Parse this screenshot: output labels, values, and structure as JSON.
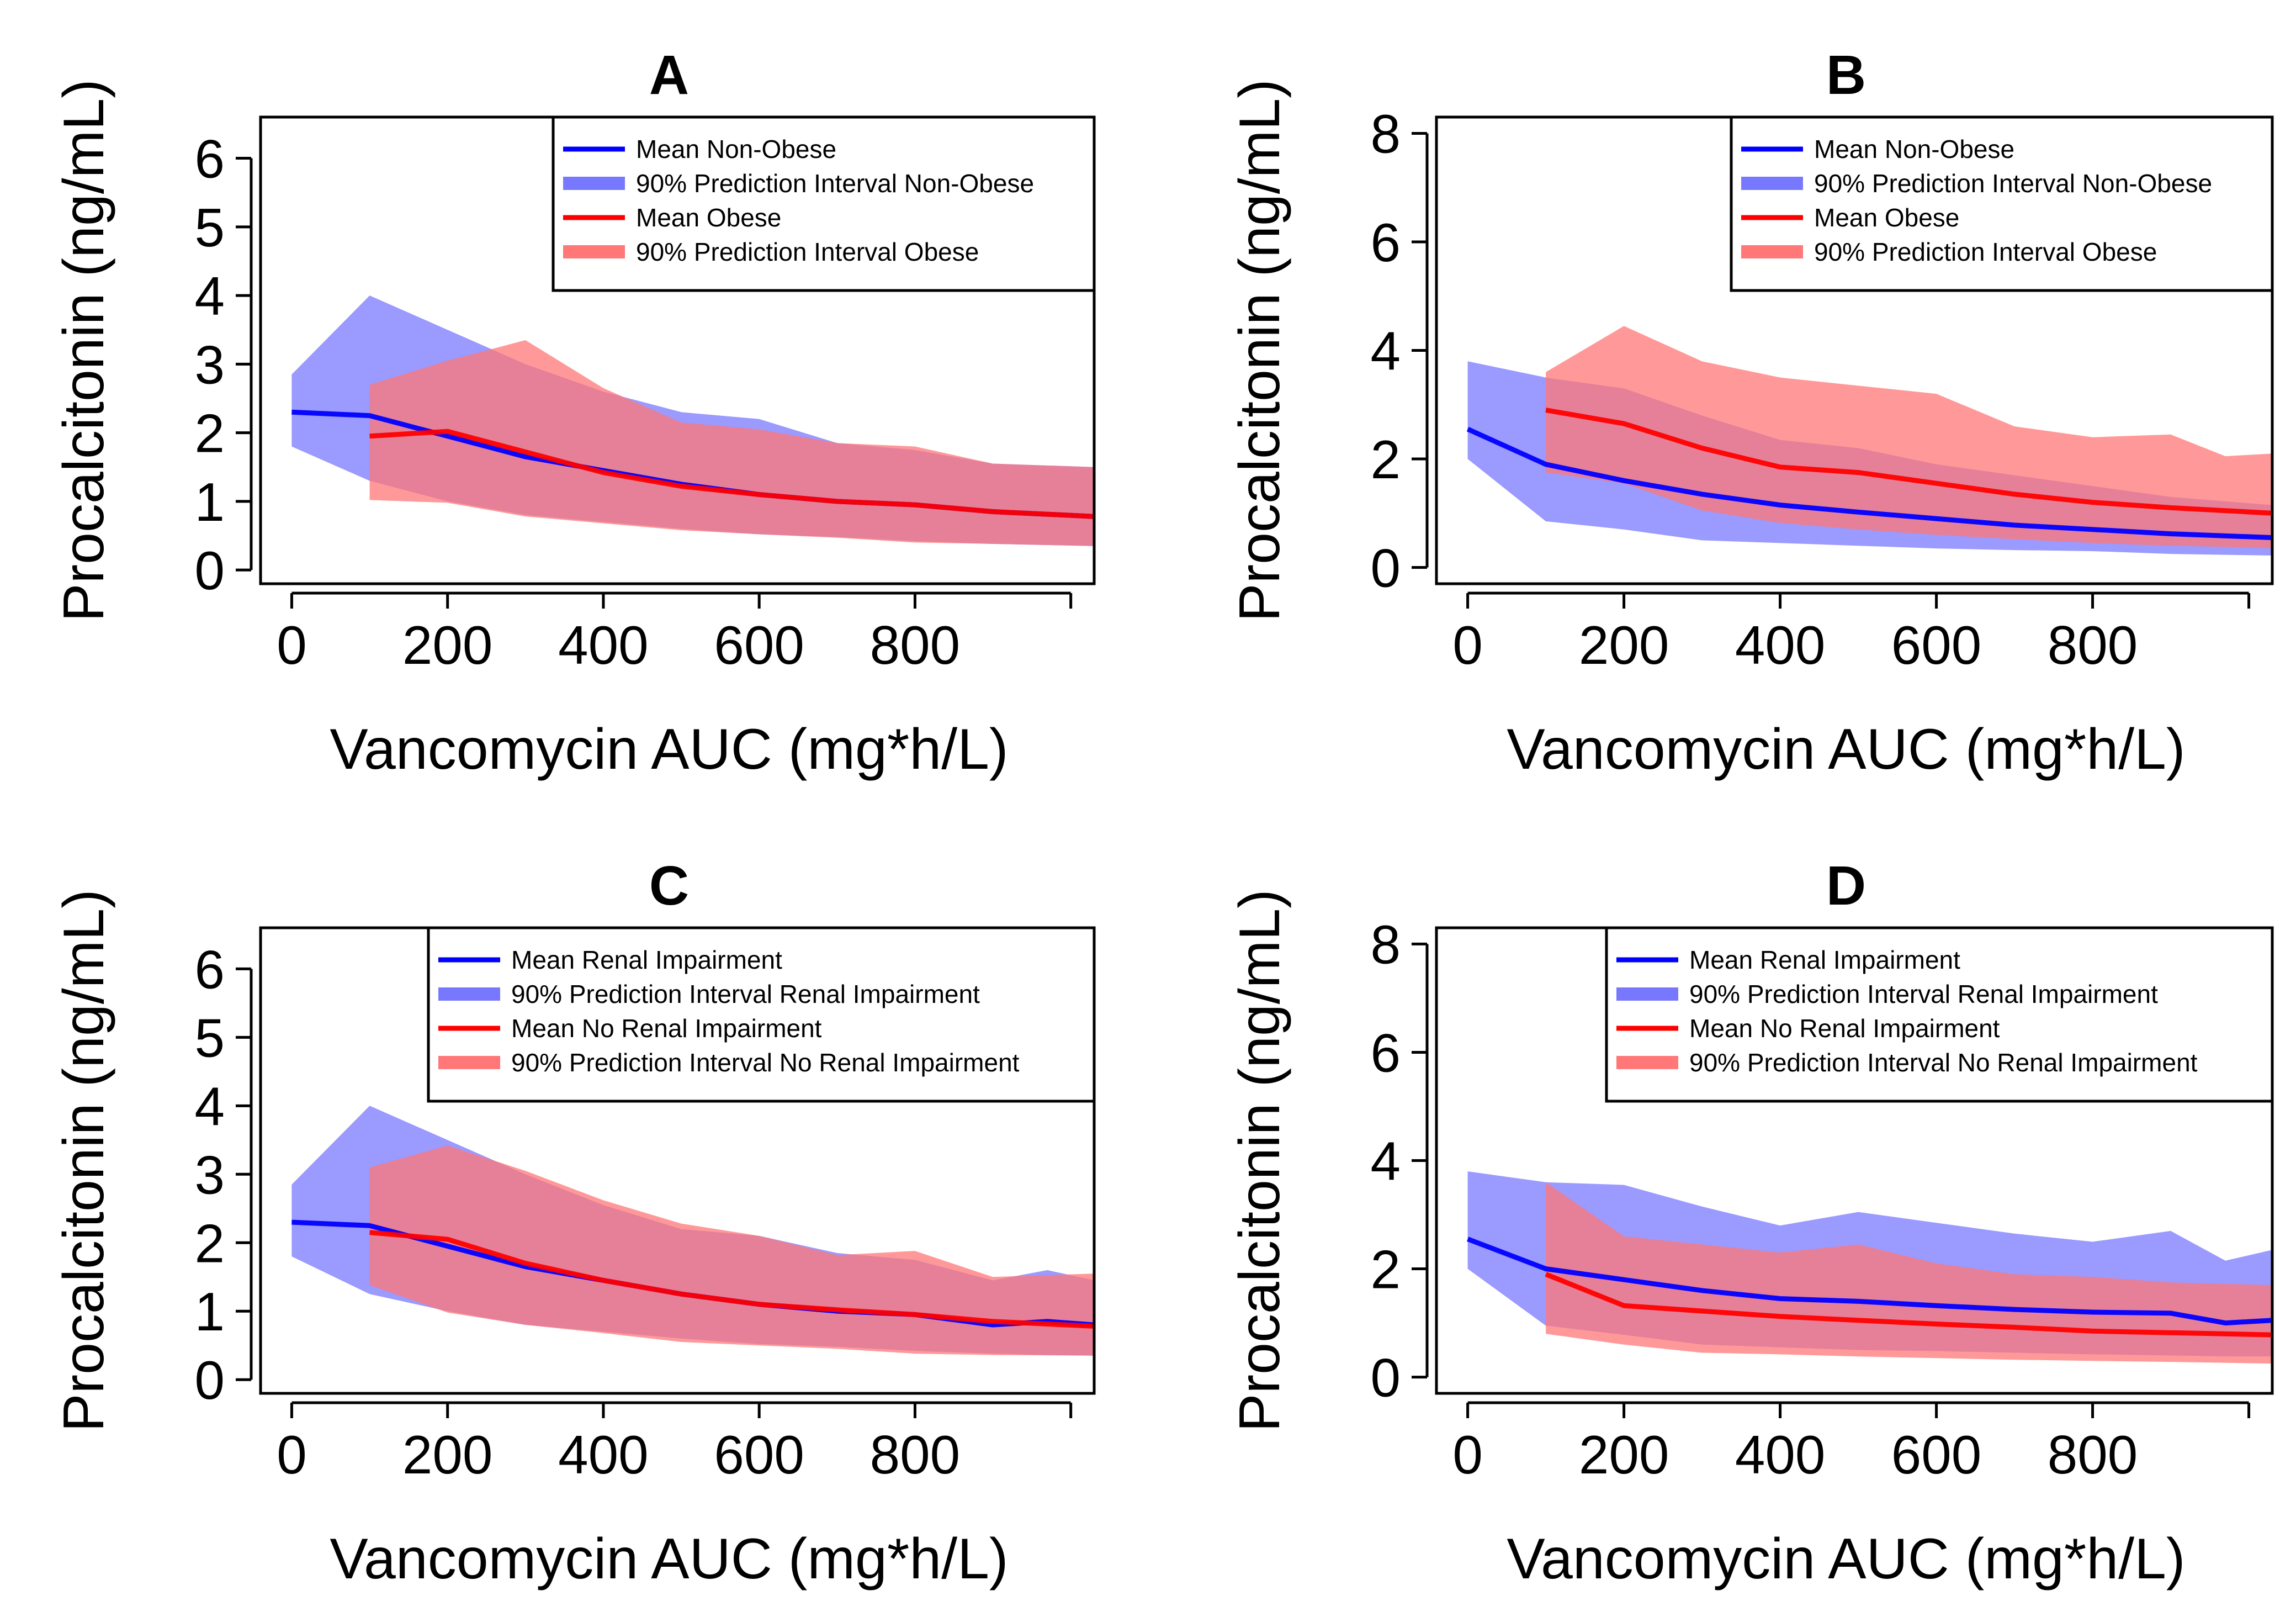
{
  "colors": {
    "blue_line": "#0000ff",
    "blue_band": "#7878ff",
    "red_line": "#ff0000",
    "red_band": "#ff7777",
    "band_opacity": 0.75
  },
  "chart_data": [
    {
      "id": "A",
      "type": "line",
      "title": "A",
      "xlabel": "Vancomycin AUC (mg*h/L)",
      "ylabel": "Procalcitonin (ng/mL)",
      "xlim": [
        -40,
        1030
      ],
      "ylim": [
        -0.2,
        6.6
      ],
      "xticks": [
        0,
        200,
        400,
        600,
        800,
        1000
      ],
      "xtick_labels": [
        "0",
        "200",
        "400",
        "600",
        "800",
        ""
      ],
      "yticks": [
        0,
        1,
        2,
        3,
        4,
        5,
        6
      ],
      "ytick_labels": [
        "0",
        "1",
        "2",
        "3",
        "4",
        "5",
        "6"
      ],
      "legend_position": "top-right",
      "legend": [
        {
          "label": "Mean Non-Obese",
          "kind": "line",
          "color": "blue"
        },
        {
          "label": "90% Prediction Interval Non-Obese",
          "kind": "band",
          "color": "blue"
        },
        {
          "label": "Mean Obese",
          "kind": "line",
          "color": "red"
        },
        {
          "label": "90% Prediction Interval Obese",
          "kind": "band",
          "color": "red"
        }
      ],
      "series": [
        {
          "name": "Mean Non-Obese",
          "kind": "line",
          "color": "blue",
          "x": [
            0,
            100,
            200,
            300,
            400,
            500,
            600,
            700,
            800,
            900,
            1030
          ],
          "y": [
            2.3,
            2.25,
            1.95,
            1.65,
            1.45,
            1.25,
            1.1,
            1.0,
            0.95,
            0.85,
            0.78
          ]
        },
        {
          "name": "90% Prediction Interval Non-Obese",
          "kind": "band",
          "color": "blue",
          "x": [
            0,
            100,
            200,
            300,
            400,
            500,
            600,
            700,
            800,
            900,
            1030
          ],
          "lower": [
            1.8,
            1.3,
            1.0,
            0.8,
            0.7,
            0.6,
            0.52,
            0.48,
            0.42,
            0.38,
            0.35
          ],
          "upper": [
            2.85,
            4.0,
            3.5,
            3.0,
            2.6,
            2.3,
            2.2,
            1.85,
            1.75,
            1.55,
            1.5
          ]
        },
        {
          "name": "Mean Obese",
          "kind": "line",
          "color": "red",
          "x": [
            100,
            200,
            300,
            400,
            500,
            600,
            700,
            800,
            900,
            1030
          ],
          "y": [
            1.95,
            2.02,
            1.72,
            1.42,
            1.22,
            1.1,
            1.0,
            0.95,
            0.85,
            0.78
          ]
        },
        {
          "name": "90% Prediction Interval Obese",
          "kind": "band",
          "color": "red",
          "x": [
            100,
            200,
            300,
            400,
            500,
            600,
            700,
            800,
            900,
            1030
          ],
          "lower": [
            1.02,
            0.98,
            0.78,
            0.68,
            0.58,
            0.52,
            0.47,
            0.4,
            0.38,
            0.35
          ],
          "upper": [
            2.7,
            3.05,
            3.35,
            2.65,
            2.15,
            2.05,
            1.85,
            1.8,
            1.55,
            1.5
          ]
        }
      ]
    },
    {
      "id": "B",
      "type": "line",
      "title": "B",
      "xlabel": "Vancomycin AUC (mg*h/L)",
      "ylabel": "Procalcitonin (ng/mL)",
      "xlim": [
        -40,
        1030
      ],
      "ylim": [
        -0.3,
        8.3
      ],
      "xticks": [
        0,
        200,
        400,
        600,
        800,
        1000
      ],
      "xtick_labels": [
        "0",
        "200",
        "400",
        "600",
        "800",
        ""
      ],
      "yticks": [
        0,
        2,
        4,
        6,
        8
      ],
      "ytick_labels": [
        "0",
        "2",
        "4",
        "6",
        "8"
      ],
      "legend_position": "top-right",
      "legend": [
        {
          "label": "Mean Non-Obese",
          "kind": "line",
          "color": "blue"
        },
        {
          "label": "90% Prediction Interval Non-Obese",
          "kind": "band",
          "color": "blue"
        },
        {
          "label": "Mean Obese",
          "kind": "line",
          "color": "red"
        },
        {
          "label": "90% Prediction Interval Obese",
          "kind": "band",
          "color": "red"
        }
      ],
      "series": [
        {
          "name": "Mean Non-Obese",
          "kind": "line",
          "color": "blue",
          "x": [
            0,
            100,
            200,
            300,
            400,
            500,
            600,
            700,
            800,
            900,
            1030
          ],
          "y": [
            2.55,
            1.9,
            1.6,
            1.35,
            1.15,
            1.02,
            0.9,
            0.78,
            0.7,
            0.62,
            0.55
          ]
        },
        {
          "name": "90% Prediction Interval Non-Obese",
          "kind": "band",
          "color": "blue",
          "x": [
            0,
            100,
            200,
            300,
            400,
            500,
            600,
            700,
            800,
            900,
            1030
          ],
          "lower": [
            2.0,
            0.85,
            0.7,
            0.5,
            0.45,
            0.4,
            0.35,
            0.32,
            0.3,
            0.25,
            0.22
          ],
          "upper": [
            3.8,
            3.5,
            3.3,
            2.8,
            2.35,
            2.2,
            1.9,
            1.7,
            1.5,
            1.3,
            1.15
          ]
        },
        {
          "name": "Mean Obese",
          "kind": "line",
          "color": "red",
          "x": [
            100,
            200,
            300,
            400,
            500,
            600,
            700,
            800,
            900,
            1030
          ],
          "y": [
            2.9,
            2.65,
            2.2,
            1.85,
            1.75,
            1.55,
            1.35,
            1.2,
            1.1,
            1.0
          ]
        },
        {
          "name": "90% Prediction Interval Obese",
          "kind": "band",
          "color": "red",
          "x": [
            100,
            200,
            300,
            400,
            500,
            600,
            700,
            800,
            900,
            970,
            1030
          ],
          "lower": [
            1.75,
            1.55,
            1.05,
            0.82,
            0.7,
            0.6,
            0.52,
            0.45,
            0.4,
            0.38,
            0.35
          ],
          "upper": [
            3.6,
            4.45,
            3.8,
            3.5,
            3.35,
            3.2,
            2.6,
            2.4,
            2.45,
            2.05,
            2.1
          ]
        }
      ]
    },
    {
      "id": "C",
      "type": "line",
      "title": "C",
      "xlabel": "Vancomycin AUC (mg*h/L)",
      "ylabel": "Procalcitonin (ng/mL)",
      "xlim": [
        -40,
        1030
      ],
      "ylim": [
        -0.2,
        6.6
      ],
      "xticks": [
        0,
        200,
        400,
        600,
        800,
        1000
      ],
      "xtick_labels": [
        "0",
        "200",
        "400",
        "600",
        "800",
        ""
      ],
      "yticks": [
        0,
        1,
        2,
        3,
        4,
        5,
        6
      ],
      "ytick_labels": [
        "0",
        "1",
        "2",
        "3",
        "4",
        "5",
        "6"
      ],
      "legend_position": "top-right",
      "legend": [
        {
          "label": "Mean Renal Impairment",
          "kind": "line",
          "color": "blue"
        },
        {
          "label": "90% Prediction Interval Renal Impairment",
          "kind": "band",
          "color": "blue"
        },
        {
          "label": "Mean No Renal Impairment",
          "kind": "line",
          "color": "red"
        },
        {
          "label": "90% Prediction Interval No Renal Impairment",
          "kind": "band",
          "color": "red"
        }
      ],
      "series": [
        {
          "name": "Mean Renal Impairment",
          "kind": "line",
          "color": "blue",
          "x": [
            0,
            100,
            200,
            300,
            400,
            500,
            600,
            700,
            800,
            900,
            970,
            1030
          ],
          "y": [
            2.3,
            2.25,
            1.95,
            1.65,
            1.45,
            1.25,
            1.1,
            1.0,
            0.95,
            0.8,
            0.85,
            0.8
          ]
        },
        {
          "name": "90% Prediction Interval Renal Impairment",
          "kind": "band",
          "color": "blue",
          "x": [
            0,
            100,
            200,
            300,
            400,
            500,
            600,
            700,
            800,
            900,
            970,
            1030
          ],
          "lower": [
            1.8,
            1.25,
            1.0,
            0.8,
            0.7,
            0.6,
            0.52,
            0.48,
            0.42,
            0.38,
            0.36,
            0.35
          ],
          "upper": [
            2.85,
            4.0,
            3.5,
            3.0,
            2.55,
            2.2,
            2.1,
            1.85,
            1.75,
            1.45,
            1.6,
            1.45
          ]
        },
        {
          "name": "Mean No Renal Impairment",
          "kind": "line",
          "color": "red",
          "x": [
            100,
            200,
            300,
            400,
            500,
            600,
            700,
            800,
            900,
            1030
          ],
          "y": [
            2.15,
            2.05,
            1.7,
            1.45,
            1.25,
            1.1,
            1.02,
            0.95,
            0.85,
            0.78
          ]
        },
        {
          "name": "90% Prediction Interval No Renal Impairment",
          "kind": "band",
          "color": "red",
          "x": [
            100,
            200,
            300,
            400,
            500,
            600,
            700,
            800,
            900,
            1030
          ],
          "lower": [
            1.38,
            0.98,
            0.8,
            0.68,
            0.55,
            0.5,
            0.45,
            0.38,
            0.36,
            0.35
          ],
          "upper": [
            3.1,
            3.42,
            3.05,
            2.62,
            2.28,
            2.1,
            1.82,
            1.88,
            1.5,
            1.55
          ]
        }
      ]
    },
    {
      "id": "D",
      "type": "line",
      "title": "D",
      "xlabel": "Vancomycin AUC (mg*h/L)",
      "ylabel": "Procalcitonin (ng/mL)",
      "xlim": [
        -40,
        1030
      ],
      "ylim": [
        -0.3,
        8.3
      ],
      "xticks": [
        0,
        200,
        400,
        600,
        800,
        1000
      ],
      "xtick_labels": [
        "0",
        "200",
        "400",
        "600",
        "800",
        ""
      ],
      "yticks": [
        0,
        2,
        4,
        6,
        8
      ],
      "ytick_labels": [
        "0",
        "2",
        "4",
        "6",
        "8"
      ],
      "legend_position": "top-right",
      "legend": [
        {
          "label": "Mean Renal Impairment",
          "kind": "line",
          "color": "blue"
        },
        {
          "label": "90% Prediction Interval Renal Impairment",
          "kind": "band",
          "color": "blue"
        },
        {
          "label": "Mean No Renal Impairment",
          "kind": "line",
          "color": "red"
        },
        {
          "label": "90% Prediction Interval No Renal Impairment",
          "kind": "band",
          "color": "red"
        }
      ],
      "series": [
        {
          "name": "Mean Renal Impairment",
          "kind": "line",
          "color": "blue",
          "x": [
            0,
            100,
            200,
            300,
            400,
            500,
            600,
            700,
            800,
            900,
            970,
            1030
          ],
          "y": [
            2.55,
            2.0,
            1.8,
            1.6,
            1.45,
            1.4,
            1.32,
            1.25,
            1.2,
            1.18,
            1.0,
            1.05
          ]
        },
        {
          "name": "90% Prediction Interval Renal Impairment",
          "kind": "band",
          "color": "blue",
          "x": [
            0,
            100,
            200,
            300,
            400,
            500,
            600,
            700,
            800,
            900,
            970,
            1030
          ],
          "lower": [
            2.0,
            0.95,
            0.78,
            0.6,
            0.55,
            0.5,
            0.48,
            0.45,
            0.42,
            0.4,
            0.38,
            0.38
          ],
          "upper": [
            3.8,
            3.6,
            3.55,
            3.15,
            2.8,
            3.05,
            2.85,
            2.65,
            2.5,
            2.7,
            2.15,
            2.35
          ]
        },
        {
          "name": "Mean No Renal Impairment",
          "kind": "line",
          "color": "red",
          "x": [
            100,
            200,
            300,
            400,
            500,
            600,
            700,
            800,
            900,
            1030
          ],
          "y": [
            1.9,
            1.32,
            1.22,
            1.12,
            1.05,
            0.98,
            0.92,
            0.85,
            0.82,
            0.78
          ]
        },
        {
          "name": "90% Prediction Interval No Renal Impairment",
          "kind": "band",
          "color": "red",
          "x": [
            100,
            200,
            300,
            400,
            500,
            600,
            700,
            800,
            900,
            1030
          ],
          "lower": [
            0.8,
            0.6,
            0.45,
            0.42,
            0.38,
            0.35,
            0.32,
            0.3,
            0.28,
            0.25
          ],
          "upper": [
            3.6,
            2.6,
            2.45,
            2.3,
            2.45,
            2.1,
            1.9,
            1.85,
            1.75,
            1.7
          ]
        }
      ]
    }
  ]
}
